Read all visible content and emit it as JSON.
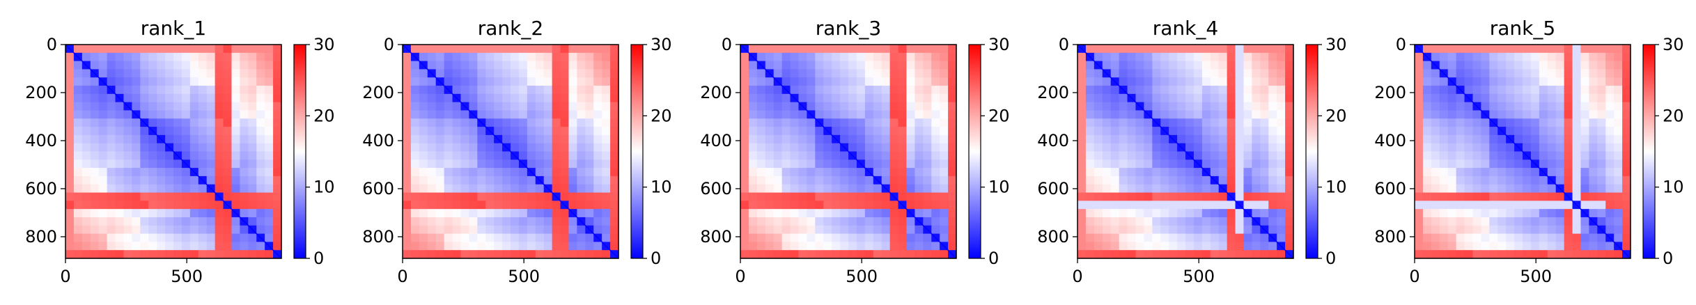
{
  "colors": {
    "low": "#0000ff",
    "mid": "#ffffff",
    "high": "#ff0000",
    "axis": "#000000",
    "background": "#ffffff"
  },
  "colormap": "bwr",
  "chart_data": [
    {
      "type": "heatmap",
      "title": "rank_1",
      "matrix_size": 890,
      "xticks": [
        0,
        500
      ],
      "yticks": [
        0,
        200,
        400,
        600,
        800
      ],
      "xlim": [
        0,
        890
      ],
      "ylim": [
        890,
        0
      ],
      "colorbar": {
        "min": 0,
        "max": 30,
        "ticks": [
          0,
          10,
          20,
          30
        ]
      },
      "band_ticks": [
        0,
        40,
        180,
        320,
        500,
        620,
        640,
        655,
        670,
        730,
        780,
        840,
        860,
        890
      ],
      "hot_bands": [
        [
          620,
          670
        ],
        [
          840,
          890
        ]
      ],
      "bright_stripe": 690,
      "diagonal_start": 25
    },
    {
      "type": "heatmap",
      "title": "rank_2",
      "matrix_size": 890,
      "xticks": [
        0,
        500
      ],
      "yticks": [
        0,
        200,
        400,
        600,
        800
      ],
      "xlim": [
        0,
        890
      ],
      "ylim": [
        890,
        0
      ],
      "colorbar": {
        "min": 0,
        "max": 30,
        "ticks": [
          0,
          10,
          20,
          30
        ]
      },
      "band_ticks": [
        0,
        40,
        180,
        320,
        500,
        620,
        640,
        655,
        670,
        730,
        780,
        840,
        860,
        890
      ],
      "hot_bands": [
        [
          620,
          670
        ],
        [
          840,
          890
        ]
      ],
      "bright_stripe": 690,
      "diagonal_start": 25
    },
    {
      "type": "heatmap",
      "title": "rank_3",
      "matrix_size": 890,
      "xticks": [
        0,
        500
      ],
      "yticks": [
        0,
        200,
        400,
        600,
        800
      ],
      "xlim": [
        0,
        890
      ],
      "ylim": [
        890,
        0
      ],
      "colorbar": {
        "min": 0,
        "max": 30,
        "ticks": [
          0,
          10,
          20,
          30
        ]
      },
      "band_ticks": [
        0,
        40,
        180,
        320,
        500,
        620,
        640,
        655,
        670,
        730,
        780,
        840,
        860,
        890
      ],
      "hot_bands": [
        [
          620,
          680
        ],
        [
          840,
          890
        ]
      ],
      "bright_stripe": 690,
      "diagonal_start": 25
    },
    {
      "type": "heatmap",
      "title": "rank_4",
      "matrix_size": 890,
      "xticks": [
        0,
        500
      ],
      "yticks": [
        0,
        200,
        400,
        600,
        800
      ],
      "xlim": [
        0,
        890
      ],
      "ylim": [
        890,
        0
      ],
      "colorbar": {
        "min": 0,
        "max": 30,
        "ticks": [
          0,
          10,
          20,
          30
        ]
      },
      "band_ticks": [
        0,
        40,
        180,
        320,
        500,
        620,
        640,
        655,
        670,
        730,
        780,
        840,
        860,
        890
      ],
      "hot_bands": [
        [
          620,
          670
        ],
        [
          840,
          890
        ]
      ],
      "bright_stripe": 670,
      "diagonal_start": 25
    },
    {
      "type": "heatmap",
      "title": "rank_5",
      "matrix_size": 890,
      "xticks": [
        0,
        500
      ],
      "yticks": [
        0,
        200,
        400,
        600,
        800
      ],
      "xlim": [
        0,
        890
      ],
      "ylim": [
        890,
        0
      ],
      "colorbar": {
        "min": 0,
        "max": 30,
        "ticks": [
          0,
          10,
          20,
          30
        ]
      },
      "band_ticks": [
        0,
        40,
        180,
        320,
        500,
        620,
        640,
        655,
        670,
        730,
        780,
        840,
        860,
        890
      ],
      "hot_bands": [
        [
          620,
          670
        ],
        [
          840,
          890
        ]
      ],
      "bright_stripe": 670,
      "diagonal_start": 25
    }
  ]
}
